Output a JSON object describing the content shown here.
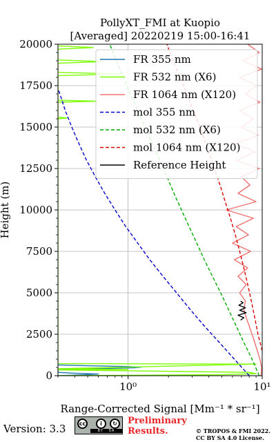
{
  "chart_data": {
    "type": "line",
    "title": "PollyXT_FMI at Kuopio",
    "subtitle": "[Averaged] 20220219 15:00-16:41",
    "xlabel": "Range-Corrected Signal [Mm⁻¹ * sr⁻¹]",
    "ylabel": "Height (m)",
    "xscale": "log",
    "xlim": [
      0.3,
      10
    ],
    "ylim": [
      0,
      20000
    ],
    "xticks": [
      {
        "value": 1,
        "label": "10⁰"
      },
      {
        "value": 10,
        "label": "10¹"
      }
    ],
    "yticks": [
      0,
      2500,
      5000,
      7500,
      10000,
      12500,
      15000,
      17500,
      20000
    ],
    "ytick_labels": [
      "0",
      "2500",
      "5000",
      "7500",
      "10000",
      "12500",
      "15000",
      "17500",
      "20000"
    ],
    "grid": true,
    "legend_position": "top-right",
    "series": [
      {
        "name": "FR 355 nm",
        "style": "solid",
        "color": "#1f77b4",
        "points": [
          [
            0.3,
            0
          ],
          [
            0.45,
            50
          ],
          [
            0.6,
            100
          ],
          [
            0.4,
            150
          ],
          [
            0.3,
            200
          ],
          [
            0.3,
            350
          ],
          [
            0.5,
            420
          ],
          [
            1.1,
            480
          ],
          [
            1.25,
            520
          ],
          [
            0.9,
            560
          ],
          [
            0.5,
            600
          ],
          [
            0.3,
            650
          ]
        ]
      },
      {
        "name": "FR 532 nm (X6)",
        "style": "solid",
        "color": "#7cfc00",
        "points": [
          [
            0.3,
            0
          ],
          [
            5,
            60
          ],
          [
            9,
            120
          ],
          [
            8,
            200
          ],
          [
            1.5,
            280
          ],
          [
            0.3,
            350
          ],
          [
            1.0,
            380
          ],
          [
            0.3,
            420
          ],
          [
            9.0,
            700
          ],
          [
            0.3,
            730
          ],
          [
            0.3,
            15500
          ],
          [
            0.35,
            15550
          ],
          [
            0.3,
            15600
          ],
          [
            0.3,
            16500
          ],
          [
            0.6,
            16560
          ],
          [
            0.3,
            16620
          ],
          [
            0.3,
            18100
          ],
          [
            0.9,
            18200
          ],
          [
            0.3,
            18300
          ],
          [
            0.3,
            18850
          ],
          [
            0.65,
            18950
          ],
          [
            0.3,
            19050
          ],
          [
            0.3,
            19700
          ],
          [
            0.55,
            19800
          ],
          [
            0.3,
            19900
          ]
        ]
      },
      {
        "name": "FR 1064 nm (X120)",
        "style": "solid",
        "color": "#f07070",
        "points": [
          [
            9.8,
            0
          ],
          [
            9.9,
            500
          ],
          [
            9.6,
            1000
          ],
          [
            9.2,
            1500
          ],
          [
            8.8,
            2000
          ],
          [
            8.4,
            2500
          ],
          [
            8.0,
            3000
          ],
          [
            7.6,
            3500
          ],
          [
            7.3,
            4000
          ],
          [
            7.5,
            4500
          ],
          [
            6.8,
            5000
          ],
          [
            7.6,
            5500
          ],
          [
            6.6,
            6000
          ],
          [
            7.8,
            6500
          ],
          [
            6.2,
            7000
          ],
          [
            8.2,
            7500
          ],
          [
            6.0,
            8000
          ],
          [
            7.9,
            8500
          ],
          [
            6.4,
            9000
          ],
          [
            8.6,
            9500
          ],
          [
            5.4,
            10000
          ],
          [
            9.0,
            10500
          ],
          [
            6.6,
            11000
          ],
          [
            8.1,
            11500
          ],
          [
            7.0,
            12000
          ],
          [
            9.5,
            12500
          ],
          [
            6.4,
            13000
          ],
          [
            8.9,
            13500
          ],
          [
            6.3,
            14000
          ],
          [
            9.3,
            14500
          ],
          [
            7.0,
            15000
          ],
          [
            8.6,
            15500
          ],
          [
            6.8,
            16000
          ],
          [
            9.6,
            16500
          ],
          [
            7.5,
            17000
          ],
          [
            9.1,
            17500
          ],
          [
            6.8,
            18000
          ],
          [
            9.9,
            18500
          ],
          [
            7.2,
            19000
          ],
          [
            9.5,
            19500
          ],
          [
            7.8,
            20000
          ]
        ]
      },
      {
        "name": "mol 355 nm",
        "style": "dashed",
        "color": "#0000cc",
        "points": [
          [
            8.0,
            0
          ],
          [
            6.2,
            1000
          ],
          [
            4.8,
            2000
          ],
          [
            3.7,
            3000
          ],
          [
            2.9,
            4000
          ],
          [
            2.3,
            5000
          ],
          [
            1.82,
            6000
          ],
          [
            1.45,
            7000
          ],
          [
            1.18,
            8000
          ],
          [
            0.96,
            9000
          ],
          [
            0.8,
            10000
          ],
          [
            0.67,
            11000
          ],
          [
            0.57,
            12000
          ],
          [
            0.49,
            13000
          ],
          [
            0.43,
            14000
          ],
          [
            0.38,
            15000
          ],
          [
            0.34,
            16000
          ],
          [
            0.31,
            17000
          ],
          [
            0.3,
            17300
          ]
        ]
      },
      {
        "name": "mol 532 nm (X6)",
        "style": "dashed",
        "color": "#00aa00",
        "points": [
          [
            9.5,
            0
          ],
          [
            8.4,
            1000
          ],
          [
            7.3,
            2000
          ],
          [
            6.4,
            3000
          ],
          [
            5.6,
            4000
          ],
          [
            4.9,
            5000
          ],
          [
            4.25,
            6000
          ],
          [
            3.7,
            7000
          ],
          [
            3.25,
            8000
          ],
          [
            2.85,
            9000
          ],
          [
            2.5,
            10000
          ],
          [
            2.2,
            11000
          ],
          [
            1.95,
            12000
          ],
          [
            1.72,
            13000
          ],
          [
            1.52,
            14000
          ],
          [
            1.34,
            15000
          ],
          [
            1.18,
            16000
          ],
          [
            1.04,
            17000
          ],
          [
            0.92,
            18000
          ],
          [
            0.82,
            19000
          ],
          [
            0.73,
            20000
          ]
        ]
      },
      {
        "name": "mol 1064 nm (X120)",
        "style": "dashed",
        "color": "#dd0000",
        "points": [
          [
            10,
            1500
          ],
          [
            9.3,
            2500
          ],
          [
            8.8,
            3500
          ],
          [
            8.3,
            4500
          ],
          [
            7.8,
            5500
          ],
          [
            7.3,
            6500
          ],
          [
            6.8,
            7500
          ],
          [
            6.3,
            8500
          ],
          [
            5.8,
            9500
          ],
          [
            5.3,
            10500
          ],
          [
            4.85,
            11500
          ],
          [
            4.4,
            12500
          ],
          [
            4.0,
            13500
          ],
          [
            3.6,
            14500
          ],
          [
            3.25,
            15500
          ],
          [
            2.9,
            16500
          ],
          [
            2.6,
            17500
          ],
          [
            2.3,
            18500
          ],
          [
            2.05,
            19500
          ],
          [
            1.95,
            20000
          ]
        ]
      },
      {
        "name": "Reference Height",
        "style": "solid",
        "color": "#000000",
        "points": [
          [
            6.9,
            3350
          ],
          [
            7.3,
            3500
          ],
          [
            6.6,
            3650
          ],
          [
            7.6,
            3800
          ],
          [
            6.8,
            3950
          ],
          [
            7.5,
            4100
          ],
          [
            6.7,
            4250
          ],
          [
            7.2,
            4400
          ],
          [
            6.9,
            4500
          ]
        ]
      }
    ]
  },
  "footer": {
    "version": "Version: 3.3",
    "preliminary_line1": "Preliminary",
    "preliminary_line2": "Results.",
    "copyright_line1": "© TROPOS & FMI 2022.",
    "copyright_line2": "CC BY SA 4.0 License."
  },
  "colors": {
    "axes": "#000000",
    "grid": "#b0b0b0",
    "preliminary": "#e8262a"
  },
  "icons": [
    "cc-icon",
    "by-icon",
    "sa-icon"
  ]
}
